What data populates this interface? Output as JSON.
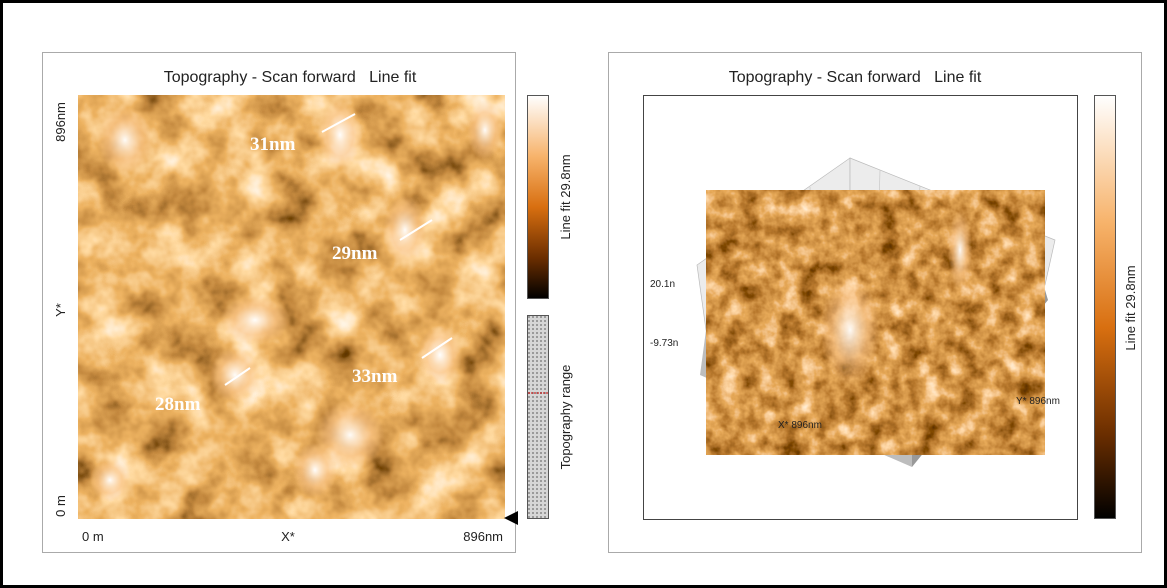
{
  "left_panel": {
    "title": "Topography - Scan forward   Line fit",
    "y_axis": {
      "top": "896nm",
      "label": "Y*",
      "bottom": "0 m"
    },
    "x_axis": {
      "left": "0 m",
      "label": "X*",
      "right": "896nm"
    },
    "colorbar_label": "Line fit 29.8nm",
    "range_label": "Topography range",
    "annotations": [
      "31nm",
      "29nm",
      "33nm",
      "28nm"
    ]
  },
  "right_panel": {
    "title": "Topography - Scan forward   Line fit",
    "z_top": "20.1n",
    "z_bottom": "-9.73n",
    "x_label": "X* 896nm",
    "y_label": "Y* 896nm",
    "colorbar_label": "Line fit 29.8nm"
  }
}
